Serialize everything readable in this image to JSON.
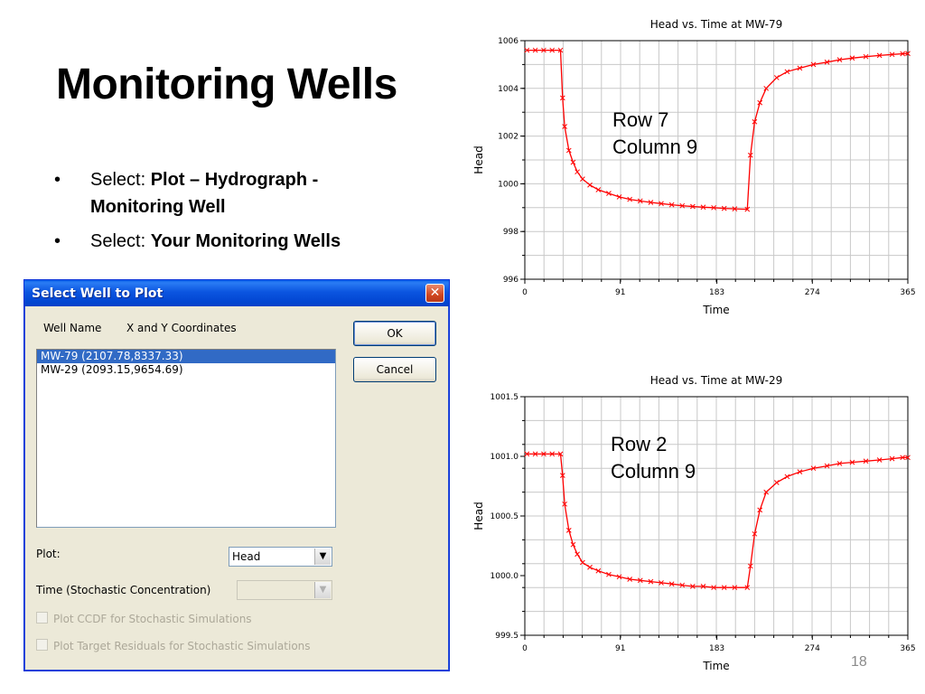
{
  "slide": {
    "title": "Monitoring Wells",
    "bullets": [
      {
        "prefix": "Select: ",
        "bold": "Plot – Hydrograph - Monitoring Well"
      },
      {
        "prefix": "Select: ",
        "bold": "Your Monitoring Wells"
      }
    ],
    "bullet_glyph": "•",
    "page_number": "18"
  },
  "dialog": {
    "title": "Select Well to Plot",
    "close_glyph": "✕",
    "col_well_name": "Well Name",
    "col_coords": "X and Y Coordinates",
    "wells": [
      {
        "label": "MW-79 (2107.78,8337.33)",
        "selected": true
      },
      {
        "label": "MW-29 (2093.15,9654.69)",
        "selected": false
      }
    ],
    "ok_label": "OK",
    "cancel_label": "Cancel",
    "plot_label": "Plot:",
    "plot_value": "Head",
    "time_label": "Time (Stochastic Concentration)",
    "time_value": "",
    "checkbox_ccdf": "Plot CCDF for Stochastic Simulations",
    "checkbox_residuals": "Plot Target Residuals for Stochastic Simulations"
  },
  "annotations": {
    "chart1": [
      "Row 7",
      "Column 9"
    ],
    "chart2": [
      "Row 2",
      "Column 9"
    ]
  },
  "colors": {
    "series": "#ff0000",
    "grid": "#c8c8c8"
  },
  "chart_data": [
    {
      "type": "line",
      "title": "Head vs. Time at MW-79",
      "xlabel": "Time",
      "ylabel": "Head",
      "xlim": [
        0,
        365
      ],
      "ylim": [
        996,
        1006
      ],
      "xticks": [
        0,
        91,
        183,
        274,
        365
      ],
      "xtick_labels": [
        "0",
        "91",
        "183",
        "274",
        "365"
      ],
      "yticks": [
        996,
        998,
        1000,
        1002,
        1004,
        1006
      ],
      "ytick_labels": [
        "996",
        "998",
        "1000",
        "1002",
        "1004",
        "1006"
      ],
      "grid": true,
      "series": [
        {
          "x": [
            2,
            10,
            18,
            26,
            34,
            36,
            38,
            42,
            46,
            50,
            55,
            62,
            70,
            80,
            90,
            100,
            110,
            120,
            130,
            140,
            150,
            160,
            170,
            180,
            190,
            200,
            212,
            215,
            219,
            224,
            230,
            240,
            250,
            262,
            275,
            288,
            300,
            312,
            325,
            338,
            350,
            360,
            365
          ],
          "y": [
            1005.6,
            1005.6,
            1005.6,
            1005.6,
            1005.6,
            1003.6,
            1002.4,
            1001.4,
            1000.9,
            1000.5,
            1000.2,
            999.95,
            999.75,
            999.6,
            999.45,
            999.35,
            999.28,
            999.22,
            999.17,
            999.12,
            999.08,
            999.05,
            999.02,
            999.0,
            998.97,
            998.95,
            998.93,
            1001.2,
            1002.6,
            1003.4,
            1004.0,
            1004.45,
            1004.7,
            1004.85,
            1005.0,
            1005.1,
            1005.2,
            1005.27,
            1005.33,
            1005.38,
            1005.42,
            1005.45,
            1005.46
          ]
        }
      ]
    },
    {
      "type": "line",
      "title": "Head vs. Time at MW-29",
      "xlabel": "Time",
      "ylabel": "Head",
      "xlim": [
        0,
        365
      ],
      "ylim": [
        999.5,
        1001.5
      ],
      "xticks": [
        0,
        91,
        183,
        274,
        365
      ],
      "xtick_labels": [
        "0",
        "91",
        "183",
        "274",
        "365"
      ],
      "yticks": [
        999.5,
        1000.0,
        1000.5,
        1001.0,
        1001.5
      ],
      "ytick_labels": [
        "999.5",
        "1000.0",
        "1000.5",
        "1001.0",
        "1001.5"
      ],
      "grid": true,
      "series": [
        {
          "x": [
            2,
            10,
            18,
            26,
            34,
            36,
            38,
            42,
            46,
            50,
            55,
            62,
            70,
            80,
            90,
            100,
            110,
            120,
            130,
            140,
            150,
            160,
            170,
            180,
            190,
            200,
            212,
            215,
            219,
            224,
            230,
            240,
            250,
            262,
            275,
            288,
            300,
            312,
            325,
            338,
            350,
            360,
            365
          ],
          "y": [
            1001.02,
            1001.02,
            1001.02,
            1001.02,
            1001.02,
            1000.84,
            1000.6,
            1000.38,
            1000.26,
            1000.18,
            1000.11,
            1000.07,
            1000.04,
            1000.01,
            999.99,
            999.97,
            999.96,
            999.95,
            999.94,
            999.93,
            999.92,
            999.91,
            999.91,
            999.9,
            999.9,
            999.9,
            999.9,
            1000.08,
            1000.35,
            1000.55,
            1000.7,
            1000.78,
            1000.83,
            1000.87,
            1000.9,
            1000.92,
            1000.94,
            1000.95,
            1000.96,
            1000.97,
            1000.98,
            1000.99,
            1000.99
          ]
        }
      ]
    }
  ]
}
